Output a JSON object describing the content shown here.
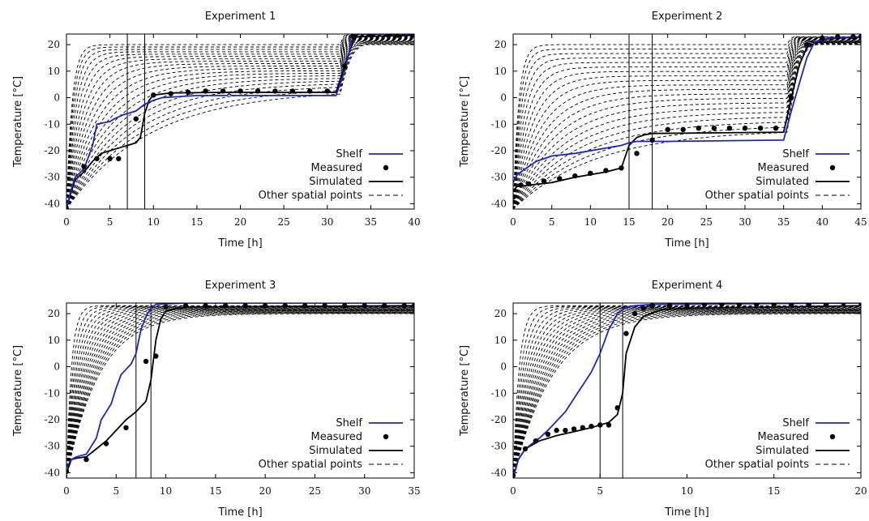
{
  "figure": {
    "y_label": "Temperature [°C]",
    "x_label": "Time [h]",
    "legend": {
      "shelf": "Shelf",
      "measured": "Measured",
      "simulated": "Simulated",
      "other": "Other spatial points"
    },
    "colors": {
      "shelf": "#1f24c8",
      "measured": "#000000",
      "simulated": "#000000",
      "other": "#000000"
    }
  },
  "chart_data": [
    {
      "type": "line",
      "title": "Experiment 1",
      "xlim": [
        0,
        40
      ],
      "ylim": [
        -42,
        24
      ],
      "xticks": [
        0,
        5,
        10,
        15,
        20,
        25,
        30,
        35,
        40
      ],
      "yticks": [
        -40,
        -30,
        -20,
        -10,
        0,
        10,
        20
      ],
      "vlines": [
        7,
        9
      ],
      "legend_position": "bottom-right",
      "shelf": [
        [
          0,
          -42
        ],
        [
          0.5,
          -35
        ],
        [
          1,
          -30
        ],
        [
          2,
          -27
        ],
        [
          3,
          -18
        ],
        [
          3.5,
          -10
        ],
        [
          5,
          -9
        ],
        [
          5.5,
          -8
        ],
        [
          6.5,
          -6.5
        ],
        [
          8,
          -5
        ],
        [
          9,
          -2.5
        ],
        [
          10,
          -1
        ],
        [
          11,
          0
        ],
        [
          15,
          0.8
        ],
        [
          18.5,
          0.8
        ],
        [
          18.7,
          1.5
        ],
        [
          19,
          0.8
        ],
        [
          31,
          0.8
        ],
        [
          32,
          10
        ],
        [
          33,
          24
        ],
        [
          40,
          24
        ]
      ],
      "simulated": [
        [
          0,
          -42
        ],
        [
          0.5,
          -36
        ],
        [
          1,
          -31
        ],
        [
          2,
          -28
        ],
        [
          3,
          -24
        ],
        [
          4,
          -21
        ],
        [
          5,
          -20
        ],
        [
          6,
          -19
        ],
        [
          7,
          -18
        ],
        [
          8,
          -17
        ],
        [
          8.5,
          -15
        ],
        [
          9,
          -6
        ],
        [
          9.5,
          -1
        ],
        [
          10,
          1
        ],
        [
          12,
          1.8
        ],
        [
          18,
          2
        ],
        [
          31,
          2
        ],
        [
          32,
          12
        ],
        [
          33,
          22
        ],
        [
          33.5,
          23
        ],
        [
          40,
          23.5
        ]
      ],
      "measured": [
        [
          0,
          -42
        ],
        [
          2,
          -26
        ],
        [
          3.5,
          -23
        ],
        [
          5,
          -23
        ],
        [
          6,
          -23
        ],
        [
          8,
          -8
        ],
        [
          10,
          1
        ],
        [
          12,
          1.5
        ],
        [
          14,
          2
        ],
        [
          16,
          2.5
        ],
        [
          18,
          2.5
        ],
        [
          20,
          2.5
        ],
        [
          22,
          2.5
        ],
        [
          24,
          2.5
        ],
        [
          26,
          2.5
        ],
        [
          28,
          2.5
        ],
        [
          30,
          2.5
        ],
        [
          32,
          12
        ],
        [
          33,
          23
        ],
        [
          35,
          23.5
        ],
        [
          37,
          23.5
        ],
        [
          38,
          23.5
        ],
        [
          40,
          23.5
        ]
      ],
      "other": {
        "count": 20,
        "t_start": 0,
        "t_end": 40,
        "t_up": 31.5,
        "t_rise": 34,
        "plateau_min": 3,
        "plateau_max": 20,
        "final_min": 20,
        "final_max": 24
      }
    },
    {
      "type": "line",
      "title": "Experiment 2",
      "xlim": [
        0,
        45
      ],
      "ylim": [
        -42,
        24
      ],
      "xticks": [
        0,
        5,
        10,
        15,
        20,
        25,
        30,
        35,
        40,
        45
      ],
      "yticks": [
        -40,
        -30,
        -20,
        -10,
        0,
        10,
        20
      ],
      "vlines": [
        15,
        18
      ],
      "legend_position": "bottom-right",
      "shelf": [
        [
          0,
          -32
        ],
        [
          0.5,
          -29
        ],
        [
          2,
          -26
        ],
        [
          3,
          -24
        ],
        [
          5,
          -22
        ],
        [
          8,
          -21
        ],
        [
          12,
          -19
        ],
        [
          14,
          -18
        ],
        [
          15,
          -17
        ],
        [
          16,
          -16.5
        ],
        [
          20,
          -16.5
        ],
        [
          35,
          -16
        ],
        [
          36,
          -5
        ],
        [
          37,
          5
        ],
        [
          38,
          15
        ],
        [
          39,
          21
        ],
        [
          41,
          22.5
        ],
        [
          45,
          23
        ]
      ],
      "simulated": [
        [
          0,
          -35
        ],
        [
          0.5,
          -33.5
        ],
        [
          2,
          -33
        ],
        [
          5,
          -32
        ],
        [
          8,
          -30
        ],
        [
          12,
          -28
        ],
        [
          14,
          -26.5
        ],
        [
          15,
          -18
        ],
        [
          16,
          -15
        ],
        [
          17,
          -14
        ],
        [
          18,
          -13.5
        ],
        [
          35,
          -13
        ],
        [
          36,
          0
        ],
        [
          37,
          12
        ],
        [
          38,
          19
        ],
        [
          40,
          22
        ],
        [
          45,
          23
        ]
      ],
      "measured": [
        [
          0,
          -37.5
        ],
        [
          1,
          -33
        ],
        [
          2,
          -32.5
        ],
        [
          4,
          -31.5
        ],
        [
          6,
          -30.5
        ],
        [
          8,
          -29.5
        ],
        [
          10,
          -28.5
        ],
        [
          12,
          -27.5
        ],
        [
          14,
          -26.5
        ],
        [
          16,
          -21
        ],
        [
          18,
          -16
        ],
        [
          20,
          -12
        ],
        [
          22,
          -12
        ],
        [
          24,
          -11.5
        ],
        [
          26,
          -11.5
        ],
        [
          28,
          -11.5
        ],
        [
          30,
          -11.5
        ],
        [
          32,
          -11.5
        ],
        [
          34,
          -11.5
        ],
        [
          36,
          0
        ],
        [
          38,
          20
        ],
        [
          40,
          22.5
        ],
        [
          42,
          23
        ],
        [
          44,
          23
        ],
        [
          45,
          23
        ]
      ],
      "other": {
        "count": 20,
        "t_start": 0,
        "t_end": 45,
        "t_up": 35.5,
        "t_rise": 38.5,
        "plateau_min": -12,
        "plateau_max": 20,
        "final_min": 20,
        "final_max": 23
      }
    },
    {
      "type": "line",
      "title": "Experiment 3",
      "xlim": [
        0,
        35
      ],
      "ylim": [
        -42,
        24
      ],
      "xticks": [
        0,
        5,
        10,
        15,
        20,
        25,
        30,
        35
      ],
      "yticks": [
        -40,
        -30,
        -20,
        -10,
        0,
        10,
        20
      ],
      "vlines": [
        7,
        8.5
      ],
      "legend_position": "bottom-right",
      "shelf": [
        [
          0,
          -38
        ],
        [
          0.5,
          -35
        ],
        [
          1,
          -34
        ],
        [
          2,
          -33
        ],
        [
          3,
          -27
        ],
        [
          3.5,
          -20
        ],
        [
          4.5,
          -14
        ],
        [
          5,
          -8
        ],
        [
          5.5,
          -3
        ],
        [
          6,
          -1
        ],
        [
          6.5,
          1
        ],
        [
          7,
          5
        ],
        [
          7.5,
          14
        ],
        [
          8,
          19
        ],
        [
          8.5,
          22
        ],
        [
          9,
          23.5
        ],
        [
          12,
          24
        ],
        [
          35,
          24
        ]
      ],
      "simulated": [
        [
          0,
          -40
        ],
        [
          0.5,
          -35
        ],
        [
          1,
          -34.5
        ],
        [
          2,
          -34
        ],
        [
          3,
          -31
        ],
        [
          4,
          -28
        ],
        [
          5,
          -24
        ],
        [
          6,
          -20
        ],
        [
          7,
          -17
        ],
        [
          8,
          -13
        ],
        [
          8.5,
          -5
        ],
        [
          9,
          10
        ],
        [
          9.5,
          18
        ],
        [
          10,
          21
        ],
        [
          12,
          22.5
        ],
        [
          35,
          23
        ]
      ],
      "measured": [
        [
          0,
          -39.5
        ],
        [
          2,
          -35
        ],
        [
          4,
          -29
        ],
        [
          6,
          -23
        ],
        [
          8,
          2
        ],
        [
          9,
          4
        ],
        [
          10,
          22.5
        ],
        [
          12,
          23
        ],
        [
          14,
          23
        ],
        [
          16,
          23
        ],
        [
          18,
          23
        ],
        [
          20,
          23
        ],
        [
          22,
          23
        ],
        [
          24,
          23
        ],
        [
          26,
          23
        ],
        [
          28,
          23
        ],
        [
          30,
          23
        ],
        [
          32,
          23
        ],
        [
          34,
          23
        ],
        [
          35,
          23
        ]
      ],
      "other": {
        "count": 18,
        "t_start": 0,
        "t_end": 35,
        "t_up": 0,
        "t_rise": 10,
        "plateau_min": 20,
        "plateau_max": 20,
        "final_min": 20,
        "final_max": 23
      }
    },
    {
      "type": "line",
      "title": "Experiment 4",
      "xlim": [
        0,
        20
      ],
      "ylim": [
        -42,
        24
      ],
      "xticks": [
        0,
        5,
        10,
        15,
        20
      ],
      "yticks": [
        -40,
        -30,
        -20,
        -10,
        0,
        10,
        20
      ],
      "vlines": [
        5,
        6.3
      ],
      "legend_position": "bottom-right",
      "shelf": [
        [
          0,
          -42
        ],
        [
          0.3,
          -35
        ],
        [
          0.7,
          -31
        ],
        [
          1.5,
          -27
        ],
        [
          2,
          -24
        ],
        [
          3,
          -17
        ],
        [
          3.5,
          -12
        ],
        [
          4,
          -7
        ],
        [
          4.5,
          -2
        ],
        [
          5,
          5
        ],
        [
          5.5,
          14
        ],
        [
          6,
          20
        ],
        [
          6.5,
          22.5
        ],
        [
          7,
          23
        ],
        [
          8,
          23.5
        ],
        [
          20,
          24
        ]
      ],
      "simulated": [
        [
          0,
          -42
        ],
        [
          0.3,
          -35
        ],
        [
          0.7,
          -31
        ],
        [
          1.5,
          -28
        ],
        [
          2.5,
          -26
        ],
        [
          3.5,
          -24.5
        ],
        [
          4.5,
          -23
        ],
        [
          5.5,
          -21
        ],
        [
          6,
          -18
        ],
        [
          6.3,
          -10
        ],
        [
          6.5,
          5
        ],
        [
          7,
          15
        ],
        [
          7.5,
          19
        ],
        [
          8.5,
          21.5
        ],
        [
          10,
          22
        ],
        [
          20,
          23
        ]
      ],
      "measured": [
        [
          0,
          -41
        ],
        [
          0.7,
          -31
        ],
        [
          1.3,
          -28
        ],
        [
          2,
          -25.5
        ],
        [
          2.5,
          -24
        ],
        [
          3,
          -24
        ],
        [
          3.5,
          -23.5
        ],
        [
          4,
          -23
        ],
        [
          4.5,
          -22.5
        ],
        [
          5,
          -22
        ],
        [
          5.5,
          -22
        ],
        [
          6,
          -15.5
        ],
        [
          6.5,
          12.5
        ],
        [
          7,
          20
        ],
        [
          7.5,
          22
        ],
        [
          8,
          23
        ],
        [
          9,
          23
        ],
        [
          10,
          23
        ],
        [
          11,
          23.5
        ],
        [
          12,
          23.5
        ],
        [
          13,
          23.5
        ],
        [
          14,
          23.5
        ],
        [
          15,
          23.5
        ],
        [
          16,
          23.5
        ],
        [
          17,
          23.5
        ],
        [
          18,
          23.5
        ],
        [
          19,
          24
        ],
        [
          20,
          24
        ]
      ],
      "other": {
        "count": 18,
        "t_start": 0,
        "t_end": 20,
        "t_up": 0,
        "t_rise": 7,
        "plateau_min": 20,
        "plateau_max": 20,
        "final_min": 20,
        "final_max": 23
      }
    }
  ]
}
